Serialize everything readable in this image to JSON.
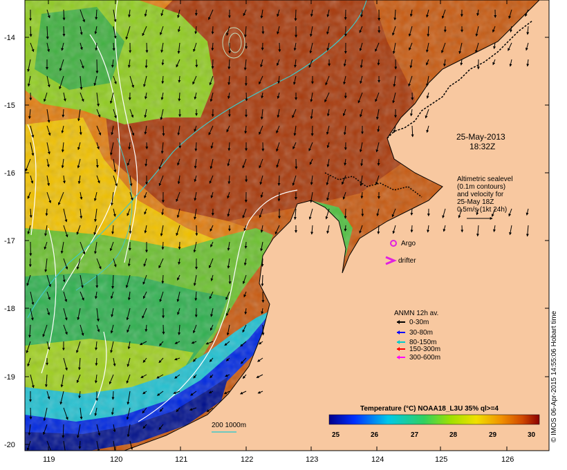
{
  "map": {
    "timestamp_date": "25-May-2013",
    "timestamp_time": "18:32Z",
    "altimetry_lines": [
      "Altimetric sealevel",
      "(0.1m contours)",
      "and velocity for",
      "25-May 18Z",
      "0.5m/s (1kt 24h)"
    ],
    "x_ticks": [
      "119",
      "120",
      "121",
      "122",
      "123",
      "124",
      "125",
      "126"
    ],
    "y_ticks": [
      "-14",
      "-15",
      "-16",
      "-17",
      "-18",
      "-19",
      "-20"
    ],
    "legend_argo": "Argo",
    "legend_drifter": "drifter",
    "anmn_title": "ANMN 12h av.",
    "anmn_items": [
      {
        "label": "0-30m",
        "color": "#000000"
      },
      {
        "label": "30-80m",
        "color": "#0000ff"
      },
      {
        "label": "80-150m",
        "color": "#00cccc"
      },
      {
        "label": "150-300m",
        "color": "#ff0000"
      },
      {
        "label": "300-600m",
        "color": "#ff00ff"
      }
    ],
    "isobath_label": "200  1000m",
    "colorbar_title": "Temperature (°C) NOAA18_L3U 35% ql>=4",
    "colorbar_ticks": [
      "25",
      "26",
      "27",
      "28",
      "29",
      "30"
    ],
    "credit": "© IMOS 06-Apr-2015 14:55:06 Hobart time",
    "colors": {
      "land": "#f8c8a0",
      "contour": "#ffffff",
      "shelf_isobath": "#40c8c8",
      "argo": "#e020e0"
    }
  }
}
